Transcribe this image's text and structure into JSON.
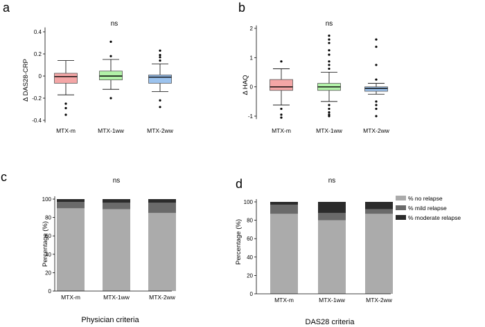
{
  "colors": {
    "mtx_m": "#f4a6a6",
    "mtx_1ww": "#b2f2a8",
    "mtx_2ww": "#9cc3ee",
    "no_relapse": "#ababab",
    "mild_relapse": "#6a6a6a",
    "moderate_relapse": "#2b2b2b",
    "median": "#000000",
    "axis": "#000000"
  },
  "chart_data": [
    {
      "panel": "a",
      "type": "box",
      "title": "ns",
      "ylabel": "Δ DAS28-CRP",
      "xlabel": "",
      "ylim": [
        -0.42,
        0.44
      ],
      "yticks": [
        -0.4,
        -0.2,
        0,
        0.2,
        0.4
      ],
      "ytick_labels": [
        "-0.4",
        "-0.2",
        "0",
        "0.2",
        "0.4"
      ],
      "categories": [
        "MTX-m",
        "MTX-1ww",
        "MTX-2ww"
      ],
      "series": [
        {
          "name": "MTX-m",
          "min": -0.17,
          "q1": -0.065,
          "median": -0.005,
          "q3": 0.025,
          "max": 0.14,
          "outliers": [
            -0.25,
            -0.29,
            -0.35
          ],
          "color_key": "mtx_m"
        },
        {
          "name": "MTX-1ww",
          "min": -0.12,
          "q1": -0.035,
          "median": 0.0,
          "q3": 0.045,
          "max": 0.15,
          "outliers": [
            -0.2,
            0.18,
            0.31
          ],
          "color_key": "mtx_1ww"
        },
        {
          "name": "MTX-2ww",
          "min": -0.14,
          "q1": -0.065,
          "median": -0.01,
          "q3": 0.01,
          "max": 0.11,
          "outliers": [
            -0.22,
            -0.28,
            0.14,
            0.17,
            0.19,
            0.23
          ],
          "color_key": "mtx_2ww"
        }
      ]
    },
    {
      "panel": "b",
      "type": "box",
      "title": "ns",
      "ylabel": "Δ HAQ",
      "xlabel": "",
      "ylim": [
        -1.1,
        2.1
      ],
      "yticks": [
        -1,
        0,
        1,
        2
      ],
      "ytick_labels": [
        "-1",
        "0",
        "1",
        "2"
      ],
      "categories": [
        "MTX-m",
        "MTX-1ww",
        "MTX-2ww"
      ],
      "series": [
        {
          "name": "MTX-m",
          "min": -0.62,
          "q1": -0.12,
          "median": 0.0,
          "q3": 0.25,
          "max": 0.62,
          "outliers": [
            -0.75,
            -0.95,
            -1.05,
            0.87
          ],
          "color_key": "mtx_m"
        },
        {
          "name": "MTX-1ww",
          "min": -0.5,
          "q1": -0.12,
          "median": 0.0,
          "q3": 0.12,
          "max": 0.5,
          "outliers": [
            -0.62,
            -0.75,
            -0.87,
            -0.95,
            -1.0,
            0.62,
            0.75,
            0.87,
            1.1,
            1.25,
            1.5,
            1.62,
            1.75
          ],
          "color_key": "mtx_1ww"
        },
        {
          "name": "MTX-2ww",
          "min": -0.25,
          "q1": -0.15,
          "median": -0.05,
          "q3": 0.0,
          "max": 0.12,
          "outliers": [
            -0.5,
            -0.62,
            -0.75,
            -1.0,
            0.25,
            0.75,
            1.37,
            1.62
          ],
          "color_key": "mtx_2ww"
        }
      ]
    },
    {
      "panel": "c",
      "type": "stacked_bar",
      "title": "ns",
      "ylabel": "Percentage (%)",
      "xlabel": "Physician criteria",
      "ylim": [
        0,
        100
      ],
      "yticks": [
        0,
        20,
        40,
        60,
        80,
        100
      ],
      "ytick_labels": [
        "0",
        "20",
        "40",
        "60",
        "80",
        "100"
      ],
      "categories": [
        "MTX-m",
        "MTX-1ww",
        "MTX-2ww"
      ],
      "series": [
        {
          "name": "% no relapse",
          "values": [
            90,
            89,
            85
          ],
          "color_key": "no_relapse"
        },
        {
          "name": "% mild relapse",
          "values": [
            7,
            7,
            11
          ],
          "color_key": "mild_relapse"
        },
        {
          "name": "% moderate relapse",
          "values": [
            3,
            4,
            4
          ],
          "color_key": "moderate_relapse"
        }
      ]
    },
    {
      "panel": "d",
      "type": "stacked_bar",
      "title": "ns",
      "ylabel": "Percentage (%)",
      "xlabel": "DAS28 criteria",
      "ylim": [
        0,
        100
      ],
      "yticks": [
        0,
        20,
        40,
        60,
        80,
        100
      ],
      "ytick_labels": [
        "0",
        "20",
        "40",
        "60",
        "80",
        "100"
      ],
      "categories": [
        "MTX-m",
        "MTX-1ww",
        "MTX-2ww"
      ],
      "series": [
        {
          "name": "% no relapse",
          "values": [
            87,
            80,
            87
          ],
          "color_key": "no_relapse"
        },
        {
          "name": "% mild relapse",
          "values": [
            10,
            8,
            5
          ],
          "color_key": "mild_relapse"
        },
        {
          "name": "% moderate relapse",
          "values": [
            3,
            12,
            8
          ],
          "color_key": "moderate_relapse"
        }
      ],
      "legend": [
        "% no relapse",
        "% mild relapse",
        "% moderate relapse"
      ]
    }
  ]
}
